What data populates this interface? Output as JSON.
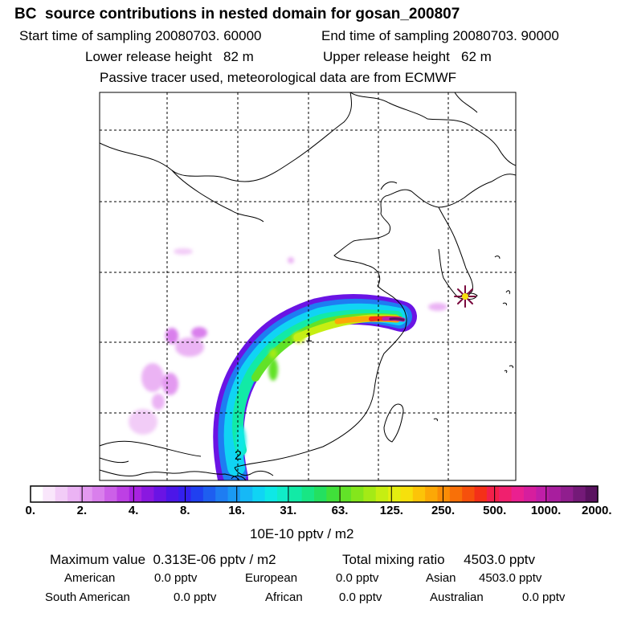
{
  "header": {
    "title": "BC  source contributions in nested domain for gosan_200807",
    "start_time": "Start time of sampling 20080703. 60000",
    "end_time": "End time of sampling 20080703. 90000",
    "lower_height": "Lower release height   82 m",
    "upper_height": "Upper release height   62 m",
    "tracer_note": "Passive tracer used, meteorological data are from ECMWF"
  },
  "map": {
    "markers": [
      {
        "label": "1"
      },
      {
        "label": "2"
      }
    ],
    "receptor": "star-icon"
  },
  "colorbar": {
    "ticks": [
      "0.",
      "2.",
      "4.",
      "8.",
      "16.",
      "31.",
      "63.",
      "125.",
      "250.",
      "500.",
      "1000.",
      "2000."
    ],
    "colors": [
      "#ffffff",
      "#f9e6fb",
      "#f2ccf7",
      "#ebb3f4",
      "#e399f0",
      "#d97fec",
      "#cc60e8",
      "#bd40e4",
      "#a823e0",
      "#8a18e0",
      "#6a14e4",
      "#4c16e8",
      "#3420ee",
      "#2040f0",
      "#1e5ef0",
      "#1e7df2",
      "#1a9af4",
      "#16b8f6",
      "#10d4f4",
      "#0ee8e6",
      "#10ecc8",
      "#12eaa6",
      "#18e684",
      "#24e060",
      "#40e03a",
      "#62e228",
      "#84e61c",
      "#a4ea16",
      "#c6ee12",
      "#e4ee10",
      "#f6e00c",
      "#fcc408",
      "#fca806",
      "#fa8c06",
      "#f87008",
      "#f6500c",
      "#f43018",
      "#f2204a",
      "#f0206e",
      "#ea2090",
      "#d61e9e",
      "#c01ea8",
      "#a81e9e",
      "#901e8e",
      "#741a78",
      "#5a1260"
    ],
    "unit": "10E-10 pptv / m2"
  },
  "footer": {
    "max_value": "Maximum value  0.313E-06 pptv / m2",
    "total_mixing": "Total mixing ratio     4503.0 pptv",
    "row1": [
      {
        "label": "American",
        "value": "0.0 pptv"
      },
      {
        "label": "European",
        "value": "0.0 pptv"
      },
      {
        "label": "Asian",
        "value": "4503.0 pptv"
      }
    ],
    "row2": [
      {
        "label": "South American",
        "value": "0.0 pptv"
      },
      {
        "label": "African",
        "value": "0.0 pptv"
      },
      {
        "label": "Australian",
        "value": "0.0 pptv"
      }
    ]
  }
}
